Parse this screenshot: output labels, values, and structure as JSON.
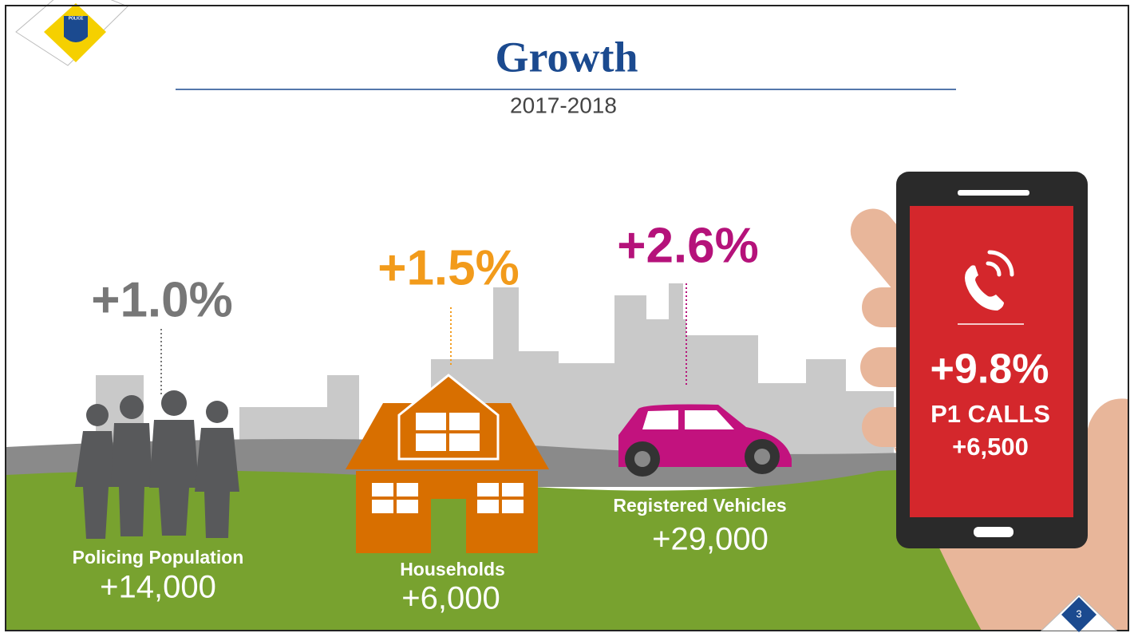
{
  "logo": {
    "text": "POLICE"
  },
  "header": {
    "title": "Growth",
    "subtitle": "2017-2018"
  },
  "stats": [
    {
      "percent": "+1.0%",
      "label": "Policing Population",
      "count": "+14,000"
    },
    {
      "percent": "+1.5%",
      "label": "Households",
      "count": "+6,000"
    },
    {
      "percent": "+2.6%",
      "label": "Registered Vehicles",
      "count": "+29,000"
    }
  ],
  "phone": {
    "percent": "+9.8%",
    "label": "P1 CALLS",
    "count": "+6,500"
  },
  "page_number": "3"
}
